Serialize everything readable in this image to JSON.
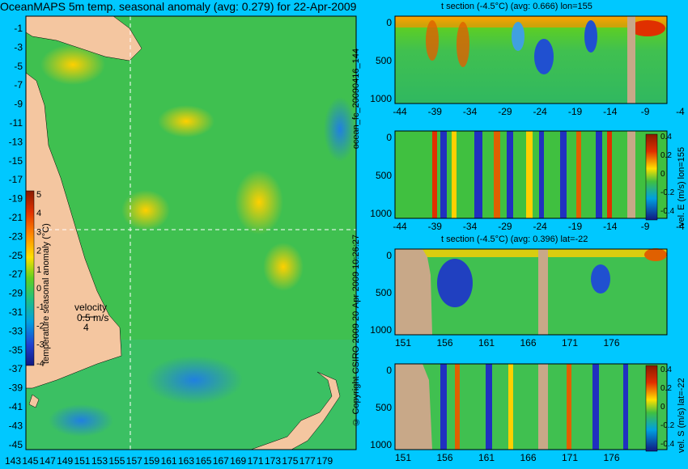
{
  "header": {
    "map_title": "OceanMAPS 5m temp. seasonal anomaly (avg: 0.279) for 22-Apr-2009",
    "forecast_id": "ocean_fc_20090416_144",
    "run_date": "20-Apr-2009 10:26:27",
    "copyright": "© Copyright CSIRO 2009"
  },
  "map": {
    "lat_ticks": [
      "-1",
      "-3",
      "-5",
      "-7",
      "-9",
      "-11",
      "-13",
      "-15",
      "-17",
      "-19",
      "-21",
      "-23",
      "-25",
      "-27",
      "-29",
      "-31",
      "-33",
      "-35",
      "-37",
      "-39",
      "-41",
      "-43",
      "-45"
    ],
    "lon_ticks": [
      "143",
      "145",
      "147",
      "149",
      "151",
      "153",
      "155",
      "157",
      "159",
      "161",
      "163",
      "165",
      "167",
      "169",
      "171",
      "173",
      "175",
      "177",
      "179"
    ],
    "colorbar": {
      "label": "temperature seasonal anomaly (°C)",
      "ticks": [
        "5",
        "4",
        "3",
        "2",
        "1",
        "0",
        "-1",
        "-2",
        "-3",
        "-4"
      ]
    },
    "velocity_legend": {
      "title": "velocity",
      "speed": "0.5 m/s",
      "scale": "4"
    }
  },
  "panels": [
    {
      "title": "t section (-4.5°C) (avg: 0.666) lon=155",
      "x_ticks": [
        "-44",
        "-39",
        "-34",
        "-29",
        "-24",
        "-19",
        "-14",
        "-9",
        "-4"
      ],
      "y_ticks": [
        "0",
        "500",
        "1000"
      ],
      "cbar_label": ""
    },
    {
      "title": "",
      "x_ticks": [
        "-44",
        "-39",
        "-34",
        "-29",
        "-24",
        "-19",
        "-14",
        "-9",
        "-4"
      ],
      "y_ticks": [
        "0",
        "500",
        "1000"
      ],
      "cbar_label": "vel. E (m/s) lon=155",
      "cbar_ticks": [
        "0.4",
        "0.2",
        "0",
        "-0.2",
        "-0.4"
      ]
    },
    {
      "title": "t section (-4.5°C) (avg: 0.396) lat=-22",
      "x_ticks": [
        "151",
        "156",
        "161",
        "166",
        "171",
        "176"
      ],
      "y_ticks": [
        "0",
        "500",
        "1000"
      ],
      "cbar_label": ""
    },
    {
      "title": "",
      "x_ticks": [
        "151",
        "156",
        "161",
        "166",
        "171",
        "176"
      ],
      "y_ticks": [
        "0",
        "500",
        "1000"
      ],
      "cbar_label": "vel. S (m/s) lat=-22",
      "cbar_ticks": [
        "0.4",
        "0.2",
        "0",
        "-0.2",
        "-0.4"
      ]
    }
  ],
  "chart_data": [
    {
      "type": "heatmap",
      "title": "OceanMAPS 5m temp. seasonal anomaly (avg: 0.279) for 22-Apr-2009",
      "x_range": [
        143,
        180
      ],
      "y_range": [
        -45,
        0
      ],
      "color_range": [
        -4,
        5
      ],
      "crosshair": {
        "lon": 155,
        "lat": -22
      },
      "colorbar_label": "temperature seasonal anomaly (°C)"
    },
    {
      "type": "heatmap",
      "title": "t section (-4.5°C) (avg: 0.666) lon=155",
      "x_range": [
        -46,
        -1
      ],
      "y_range": [
        1050,
        0
      ],
      "dominant_colors": [
        "#1fb84a",
        "#ffd000",
        "#e03000",
        "#2050e0"
      ]
    },
    {
      "type": "heatmap",
      "title": "vel. E (m/s) lon=155",
      "x_range": [
        -46,
        -1
      ],
      "y_range": [
        1050,
        0
      ],
      "color_range": [
        -0.4,
        0.4
      ]
    },
    {
      "type": "heatmap",
      "title": "t section (-4.5°C) (avg: 0.396) lat=-22",
      "x_range": [
        149,
        181
      ],
      "y_range": [
        1050,
        0
      ]
    },
    {
      "type": "heatmap",
      "title": "vel. S (m/s) lat=-22",
      "x_range": [
        149,
        181
      ],
      "y_range": [
        1050,
        0
      ],
      "color_range": [
        -0.4,
        0.4
      ]
    }
  ],
  "colors": {
    "background": "#00c8ff",
    "land": "#e8b088",
    "section_land": "#c8a888"
  }
}
